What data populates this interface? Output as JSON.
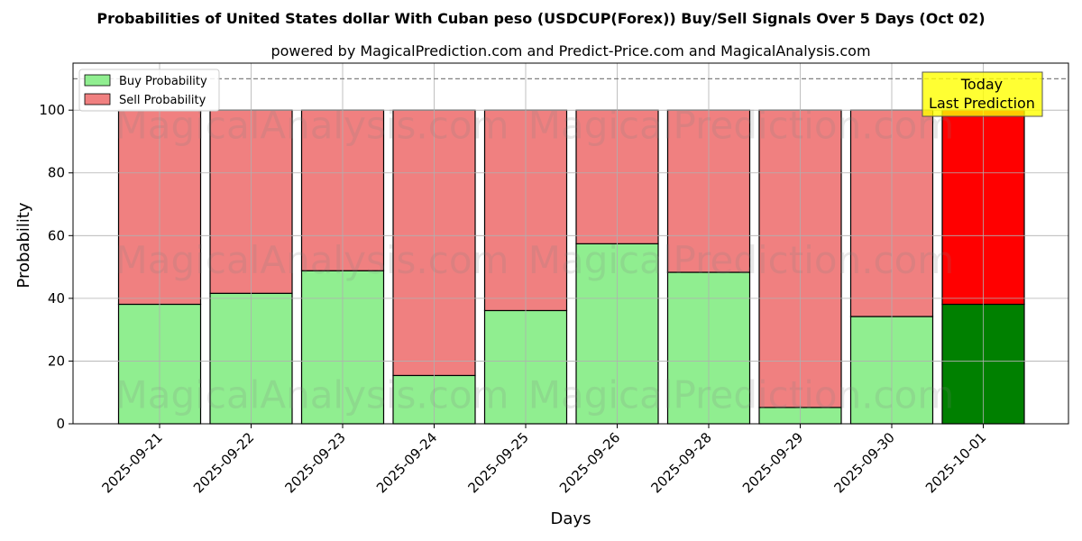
{
  "chart_data": {
    "type": "bar",
    "stacked": true,
    "title": "Probabilities of United States dollar With Cuban peso (USDCUP(Forex)) Buy/Sell Signals Over 5 Days (Oct 02)",
    "subtitle": "powered by MagicalPrediction.com and Predict-Price.com and MagicalAnalysis.com",
    "xlabel": "Days",
    "ylabel": "Probability",
    "ylim": [
      0,
      115
    ],
    "yticks": [
      0,
      20,
      40,
      60,
      80,
      100
    ],
    "grid": true,
    "legend_position": "top-left",
    "categories": [
      "2025-09-21",
      "2025-09-22",
      "2025-09-23",
      "2025-09-24",
      "2025-09-25",
      "2025-09-26",
      "2025-09-28",
      "2025-09-29",
      "2025-09-30",
      "2025-10-01"
    ],
    "series": [
      {
        "name": "Buy Probability",
        "color": "#90ee90",
        "highlight_color": "#008000",
        "values": [
          38.1,
          41.6,
          48.8,
          15.4,
          36.1,
          57.4,
          48.3,
          5.2,
          34.2,
          38.1
        ]
      },
      {
        "name": "Sell Probability",
        "color": "#f08080",
        "highlight_color": "#ff0000",
        "values": [
          61.9,
          58.4,
          51.2,
          84.6,
          63.9,
          42.6,
          51.7,
          94.8,
          65.8,
          61.9
        ]
      }
    ],
    "highlight_index": 9,
    "reference_line": {
      "y": 110,
      "style": "dashed"
    },
    "annotation": {
      "lines": [
        "Today",
        "Last Prediction"
      ],
      "background": "#ffff00"
    },
    "watermarks": [
      "MagicalAnalysis.com",
      "MagicalPrediction.com"
    ]
  }
}
